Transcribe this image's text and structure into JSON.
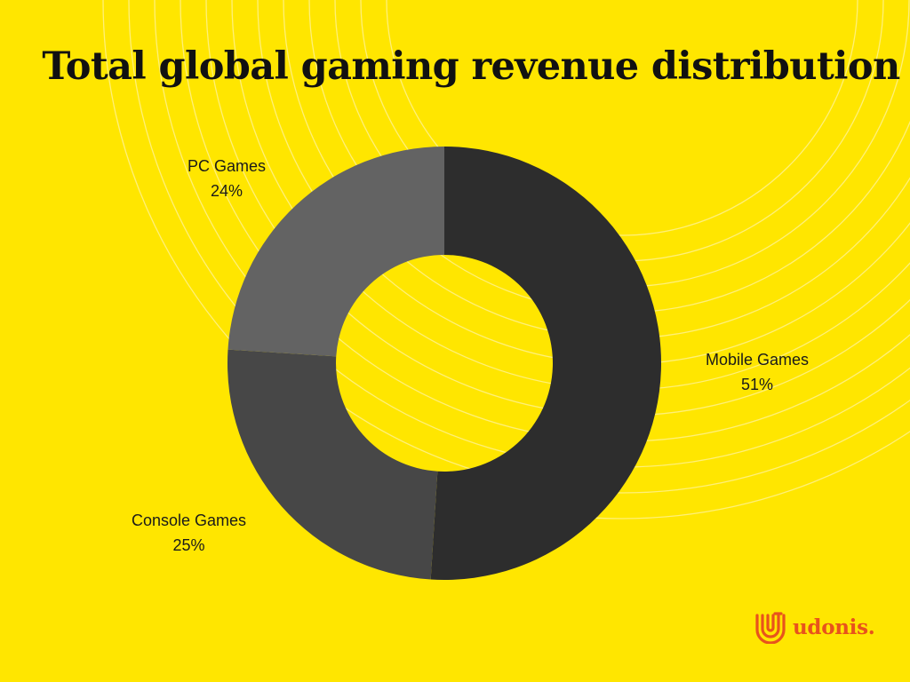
{
  "chart_data": {
    "type": "pie",
    "variant": "donut",
    "title": "Total global gaming revenue distribution",
    "slices": [
      {
        "name": "Mobile Games",
        "value": 51,
        "label": "51%",
        "color": "#2D2D2D"
      },
      {
        "name": "Console Games",
        "value": 25,
        "label": "25%",
        "color": "#474747"
      },
      {
        "name": "PC Games",
        "value": 24,
        "label": "24%",
        "color": "#636363"
      }
    ],
    "legend": "none"
  },
  "brand": {
    "name": "udonis.",
    "color": "#E8531C",
    "icon": "udonis-logo-icon"
  },
  "colors": {
    "background": "#FFE600",
    "decor_lines": "#FFF3A0"
  }
}
